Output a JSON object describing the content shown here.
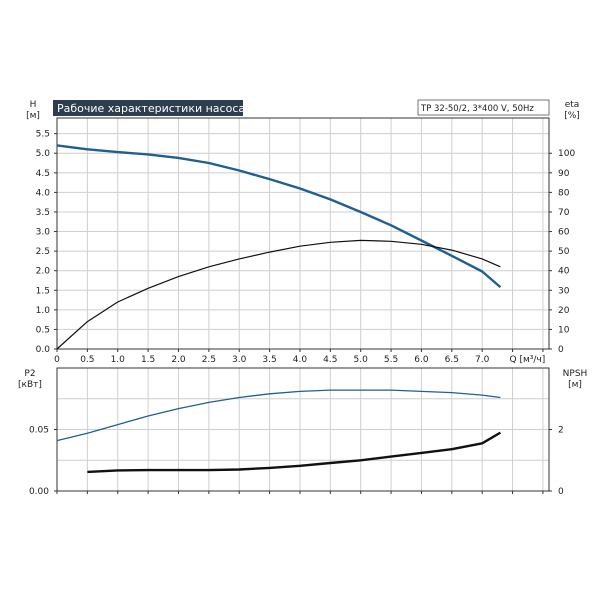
{
  "chart_data": [
    {
      "type": "line",
      "title": "Рабочие характеристики насоса",
      "info_label": "TP 32-50/2, 3*400 V, 50Hz",
      "left_axis": {
        "label": "H",
        "unit": "[м]",
        "range": [
          0,
          5.9
        ],
        "ticks": [
          "0.0",
          "0.5",
          "1.0",
          "1.5",
          "2.0",
          "2.5",
          "3.0",
          "3.5",
          "4.0",
          "4.5",
          "5.0",
          "5.5"
        ]
      },
      "right_axis": {
        "label": "eta",
        "unit": "[%]",
        "range": [
          0,
          118
        ],
        "ticks": [
          "0",
          "10",
          "20",
          "30",
          "40",
          "50",
          "60",
          "70",
          "80",
          "90",
          "100"
        ]
      },
      "x_axis": {
        "label": "Q [м³/ч]",
        "range": [
          0,
          8.1
        ],
        "ticks": [
          "0",
          "0.5",
          "1.0",
          "1.5",
          "2.0",
          "2.5",
          "3.0",
          "3.5",
          "4.0",
          "4.5",
          "5.0",
          "5.5",
          "6.0",
          "6.5",
          "7.0"
        ]
      },
      "grid": true,
      "series": [
        {
          "axis": "left",
          "color": "#1f5f93",
          "x": [
            0,
            0.5,
            1.0,
            1.5,
            2.0,
            2.5,
            3.0,
            3.5,
            4.0,
            4.5,
            5.0,
            5.5,
            6.0,
            6.5,
            7.0,
            7.3
          ],
          "y": [
            5.2,
            5.1,
            5.03,
            4.97,
            4.88,
            4.75,
            4.56,
            4.34,
            4.1,
            3.82,
            3.5,
            3.16,
            2.77,
            2.38,
            1.98,
            1.58
          ]
        },
        {
          "axis": "right",
          "color": "#111111",
          "x": [
            0,
            0.5,
            1.0,
            1.5,
            2.0,
            2.5,
            3.0,
            3.5,
            4.0,
            4.5,
            5.0,
            5.5,
            6.0,
            6.5,
            7.0,
            7.3
          ],
          "y": [
            0,
            14,
            24,
            31,
            37,
            42,
            46,
            49.5,
            52.5,
            54.5,
            55.5,
            55,
            53.5,
            50.5,
            46,
            42
          ]
        }
      ]
    },
    {
      "type": "line",
      "left_axis": {
        "label": "P2",
        "unit": "[кВт]",
        "range": [
          0,
          0.1
        ],
        "ticks": [
          "0.00",
          "0.05"
        ]
      },
      "right_axis": {
        "label": "NPSH",
        "unit": "[м]",
        "range": [
          0,
          4
        ],
        "ticks": [
          "0",
          "2"
        ]
      },
      "x_axis": {
        "range": [
          0,
          8.1
        ]
      },
      "grid": true,
      "series": [
        {
          "axis": "left",
          "color": "#1f5f93",
          "x": [
            0,
            0.5,
            1.0,
            1.5,
            2.0,
            2.5,
            3.0,
            3.5,
            4.0,
            4.5,
            5.0,
            5.5,
            6.0,
            6.5,
            7.0,
            7.3
          ],
          "y": [
            0.041,
            0.047,
            0.054,
            0.061,
            0.067,
            0.072,
            0.076,
            0.079,
            0.081,
            0.082,
            0.082,
            0.082,
            0.081,
            0.08,
            0.078,
            0.076
          ]
        },
        {
          "axis": "right",
          "color": "#111111",
          "x": [
            0.5,
            1.0,
            1.5,
            2.0,
            2.5,
            3.0,
            3.5,
            4.0,
            4.5,
            5.0,
            5.5,
            6.0,
            6.5,
            7.0,
            7.3
          ],
          "y": [
            0.62,
            0.67,
            0.68,
            0.68,
            0.68,
            0.7,
            0.75,
            0.82,
            0.91,
            1.0,
            1.12,
            1.24,
            1.36,
            1.55,
            1.9
          ]
        }
      ]
    }
  ]
}
